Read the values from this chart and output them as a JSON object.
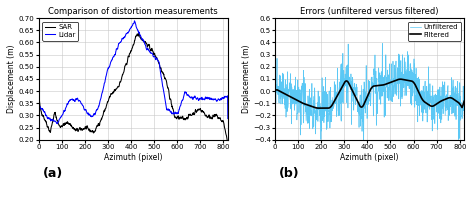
{
  "title_left": "Comparison of distortion measurements",
  "title_right": "Errors (unfiltered versus filtered)",
  "xlabel": "Azimuth (pixel)",
  "ylabel_left": "Displacement (m)",
  "ylabel_right": "Displacement (m)",
  "label_a": "(a)",
  "label_b": "(b)",
  "xlim": [
    0,
    820
  ],
  "xticks": [
    0,
    100,
    200,
    300,
    400,
    500,
    600,
    700,
    800
  ],
  "ylim_left": [
    0.2,
    0.7
  ],
  "yticks_left": [
    0.2,
    0.25,
    0.3,
    0.35,
    0.4,
    0.45,
    0.5,
    0.55,
    0.6,
    0.65,
    0.7
  ],
  "ylim_right": [
    -0.4,
    0.6
  ],
  "yticks_right": [
    -0.4,
    -0.3,
    -0.2,
    -0.1,
    0.0,
    0.1,
    0.2,
    0.3,
    0.4,
    0.5,
    0.6
  ],
  "legend_left": [
    "SAR",
    "Lidar"
  ],
  "legend_right": [
    "Unfiltered",
    "Filtered"
  ],
  "color_SAR": "black",
  "color_Lidar": "blue",
  "color_unfiltered": "#5BC8F5",
  "color_filtered": "black",
  "background_color": "white",
  "grid_color": "#c8c8c8",
  "seed": 42
}
